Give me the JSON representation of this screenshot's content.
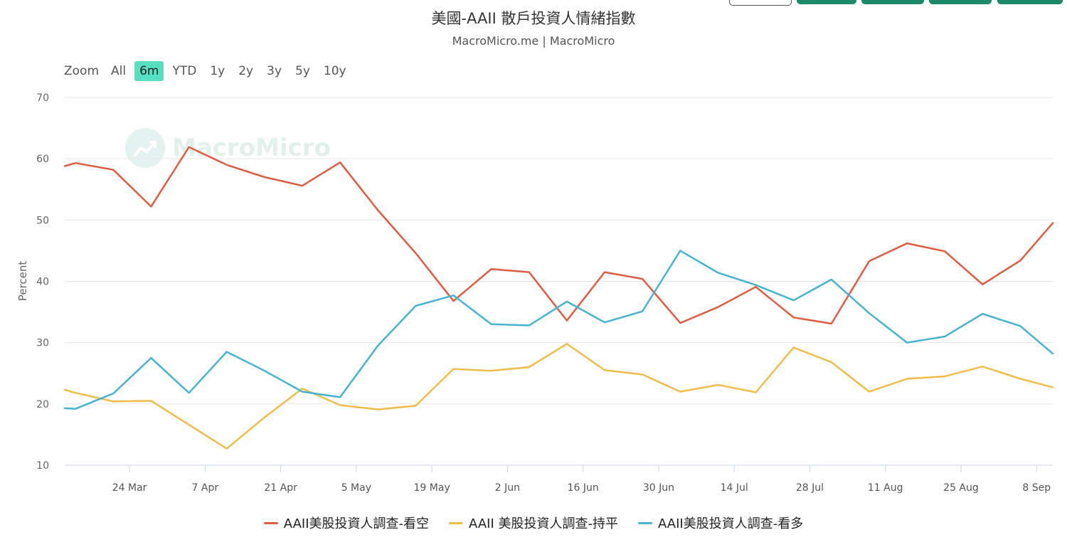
{
  "title": "美國-AAII 散戶投資人情緒指數",
  "subtitle": "MacroMicro.me | MacroMicro",
  "watermark": "MacroMicro",
  "zoom": {
    "label": "Zoom",
    "options": [
      "All",
      "6m",
      "YTD",
      "1y",
      "2y",
      "3y",
      "5y",
      "10y"
    ],
    "active": "6m"
  },
  "colors": {
    "bearish": "#e05c3f",
    "neutral": "#f0bd4a",
    "bullish": "#45b4d0",
    "active_zoom": "#57e0c0",
    "brand": "#1a8a68"
  },
  "chart_data": {
    "type": "line",
    "ylabel": "Percent",
    "ylim": [
      10,
      70
    ],
    "yticks": [
      10,
      20,
      30,
      40,
      50,
      60,
      70
    ],
    "xlim": [
      "2025-03-12",
      "2025-09-11"
    ],
    "xticks": [
      {
        "date": "2025-03-24",
        "label": "24 Mar"
      },
      {
        "date": "2025-04-07",
        "label": "7 Apr"
      },
      {
        "date": "2025-04-21",
        "label": "21 Apr"
      },
      {
        "date": "2025-05-05",
        "label": "5 May"
      },
      {
        "date": "2025-05-19",
        "label": "19 May"
      },
      {
        "date": "2025-06-02",
        "label": "2 Jun"
      },
      {
        "date": "2025-06-16",
        "label": "16 Jun"
      },
      {
        "date": "2025-06-30",
        "label": "30 Jun"
      },
      {
        "date": "2025-07-14",
        "label": "14 Jul"
      },
      {
        "date": "2025-07-28",
        "label": "28 Jul"
      },
      {
        "date": "2025-08-11",
        "label": "11 Aug"
      },
      {
        "date": "2025-08-25",
        "label": "25 Aug"
      },
      {
        "date": "2025-09-08",
        "label": "8 Sep"
      }
    ],
    "x": [
      "2025-03-12",
      "2025-03-14",
      "2025-03-21",
      "2025-03-28",
      "2025-04-04",
      "2025-04-11",
      "2025-04-18",
      "2025-04-25",
      "2025-05-02",
      "2025-05-09",
      "2025-05-16",
      "2025-05-23",
      "2025-05-30",
      "2025-06-06",
      "2025-06-13",
      "2025-06-20",
      "2025-06-27",
      "2025-07-04",
      "2025-07-11",
      "2025-07-18",
      "2025-07-25",
      "2025-08-01",
      "2025-08-08",
      "2025-08-15",
      "2025-08-22",
      "2025-08-29",
      "2025-09-05",
      "2025-09-11"
    ],
    "series": [
      {
        "name": "AAII美股投資人調查-看空",
        "color": "#e05c3f",
        "values": [
          58.8,
          59.3,
          58.2,
          52.2,
          61.9,
          59.0,
          57.0,
          55.6,
          59.4,
          51.6,
          44.6,
          36.8,
          42.0,
          41.5,
          33.6,
          41.5,
          40.4,
          33.2,
          35.8,
          39.1,
          34.1,
          33.1,
          43.3,
          46.2,
          44.9,
          39.5,
          43.4,
          49.5
        ]
      },
      {
        "name": "AAII 美股投資人調查-持平",
        "color": "#f0bd4a",
        "values": [
          22.3,
          21.8,
          20.4,
          20.5,
          16.6,
          12.7,
          17.8,
          22.5,
          19.8,
          19.1,
          19.7,
          25.7,
          25.4,
          26.0,
          29.8,
          25.5,
          24.8,
          22.0,
          23.1,
          21.9,
          29.2,
          26.8,
          22.0,
          24.1,
          24.5,
          26.1,
          24.1,
          22.7
        ]
      },
      {
        "name": "AAII美股投資人調查-看多",
        "color": "#45b4d0",
        "values": [
          19.3,
          19.2,
          21.7,
          27.5,
          21.8,
          28.5,
          25.4,
          22.0,
          21.1,
          29.5,
          36.0,
          37.7,
          33.0,
          32.8,
          36.7,
          33.3,
          35.1,
          45.0,
          41.4,
          39.4,
          36.9,
          40.3,
          34.8,
          30.0,
          31.0,
          34.7,
          32.7,
          28.2
        ]
      }
    ],
    "grid": true,
    "legend": "bottom-center"
  }
}
